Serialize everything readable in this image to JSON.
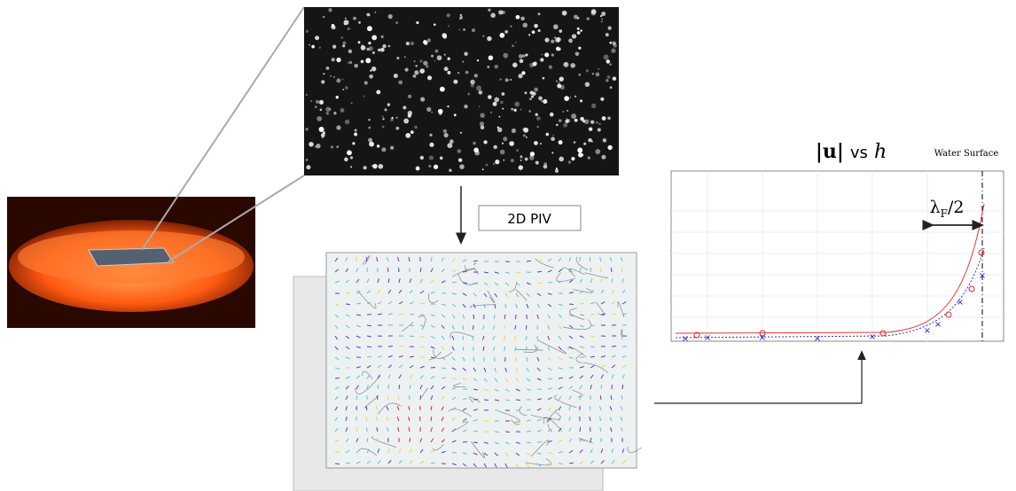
{
  "method": "2D PIV",
  "plot": {
    "title": {
      "u": "|u|",
      "vs": "vs",
      "h": "h"
    },
    "surface_label": "Water Surface",
    "annotation": {
      "symbol": "λ",
      "subscript": "F",
      "rest": "/2"
    }
  }
}
